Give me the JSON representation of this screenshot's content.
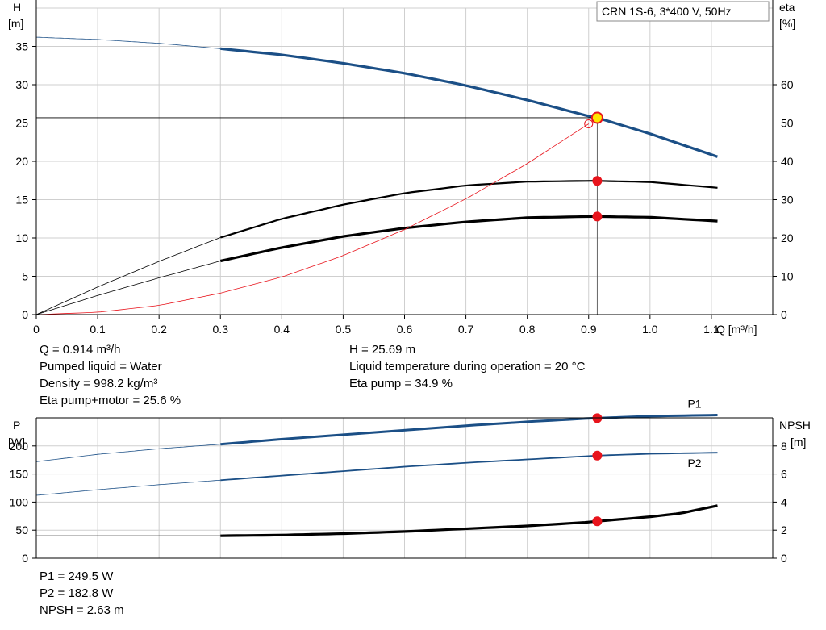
{
  "title_box": "CRN 1S-6, 3*400 V, 50Hz",
  "colors": {
    "blue": "#1b4f86",
    "black": "#000000",
    "red": "#e8141c",
    "grid": "#cfcfcf",
    "yellow": "#ffe600"
  },
  "top_chart": {
    "left_axis_label": [
      "H",
      "[m]"
    ],
    "right_axis_label": [
      "eta",
      "[%]"
    ],
    "x_axis_label": "Q [m³/h]",
    "x_ticks": [
      "0",
      "0.1",
      "0.2",
      "0.3",
      "0.4",
      "0.5",
      "0.6",
      "0.7",
      "0.8",
      "0.9",
      "1.0",
      "1.1"
    ],
    "left_ticks": [
      "0",
      "5",
      "10",
      "15",
      "20",
      "25",
      "30",
      "35"
    ],
    "right_ticks": [
      "0",
      "10",
      "20",
      "30",
      "40",
      "50",
      "60"
    ]
  },
  "bottom_chart": {
    "left_axis_label": [
      "P",
      "[W]"
    ],
    "right_axis_label": [
      "NPSH",
      "[m]"
    ],
    "left_ticks": [
      "0",
      "50",
      "100",
      "150",
      "200"
    ],
    "right_ticks": [
      "0",
      "2",
      "4",
      "6",
      "8"
    ],
    "series_labels": {
      "p1": "P1",
      "p2": "P2"
    }
  },
  "info_top_left": [
    "Q = 0.914 m³/h",
    "Pumped liquid = Water",
    "Density = 998.2 kg/m³",
    "Eta pump+motor = 25.6 %"
  ],
  "info_top_right": [
    "H = 25.69 m",
    "Liquid temperature during operation = 20 °C",
    "Eta pump = 34.9 %"
  ],
  "info_bottom": [
    "P1 = 249.5 W",
    "P2 = 182.8 W",
    "NPSH = 2.63 m"
  ],
  "chart_data": [
    {
      "type": "line",
      "title": "CRN 1S-6, 3*400 V, 50Hz",
      "xlabel": "Q [m³/h]",
      "ylabel": "H [m]",
      "y2label": "eta [%]",
      "xlim": [
        0,
        1.2
      ],
      "ylim": [
        0,
        40
      ],
      "y2lim": [
        0,
        80
      ],
      "grid": true,
      "operating_point": {
        "q": 0.914,
        "h": 25.69,
        "eta_pump": 34.9,
        "eta_pump_motor": 25.6
      },
      "series": [
        {
          "id": "head",
          "axis": "left",
          "color": "blue",
          "x": [
            0,
            0.1,
            0.2,
            0.3,
            0.4,
            0.5,
            0.6,
            0.7,
            0.8,
            0.9,
            0.914,
            1.0,
            1.11
          ],
          "y": [
            36.2,
            35.9,
            35.4,
            34.7,
            33.9,
            32.8,
            31.5,
            29.9,
            28.0,
            25.9,
            25.69,
            23.6,
            20.6
          ]
        },
        {
          "id": "eta_pump",
          "axis": "right",
          "color": "black",
          "x": [
            0,
            0.1,
            0.2,
            0.3,
            0.4,
            0.5,
            0.6,
            0.7,
            0.8,
            0.9,
            0.914,
            1.0,
            1.11
          ],
          "y": [
            0,
            7.2,
            13.9,
            20.1,
            25.0,
            28.7,
            31.7,
            33.7,
            34.7,
            34.9,
            34.9,
            34.6,
            33.1
          ]
        },
        {
          "id": "eta_pump_motor",
          "axis": "right",
          "color": "black",
          "x": [
            0,
            0.1,
            0.2,
            0.3,
            0.4,
            0.5,
            0.6,
            0.7,
            0.8,
            0.9,
            0.914,
            1.0,
            1.11
          ],
          "y": [
            0,
            5.0,
            9.6,
            14.0,
            17.5,
            20.4,
            22.6,
            24.2,
            25.3,
            25.6,
            25.6,
            25.4,
            24.4
          ]
        },
        {
          "id": "system_curve",
          "axis": "left",
          "color": "red",
          "x": [
            0,
            0.1,
            0.2,
            0.3,
            0.4,
            0.5,
            0.6,
            0.7,
            0.8,
            0.9
          ],
          "y": [
            0,
            0.3,
            1.2,
            2.8,
            4.9,
            7.7,
            11.1,
            15.1,
            19.7,
            24.9
          ]
        }
      ]
    },
    {
      "type": "line",
      "xlabel": "Q [m³/h]",
      "ylabel": "P [W]",
      "y2label": "NPSH [m]",
      "xlim": [
        0,
        1.2
      ],
      "ylim": [
        0,
        250
      ],
      "y2lim": [
        0,
        10
      ],
      "grid": true,
      "operating_point": {
        "q": 0.914,
        "p1": 249.5,
        "p2": 182.8,
        "npsh": 2.63
      },
      "series": [
        {
          "id": "p1",
          "name": "P1",
          "axis": "left",
          "color": "blue",
          "x": [
            0,
            0.1,
            0.2,
            0.3,
            0.4,
            0.5,
            0.6,
            0.7,
            0.8,
            0.9,
            0.914,
            1.0,
            1.11
          ],
          "y": [
            172,
            185,
            195,
            203,
            212,
            220,
            228,
            236,
            243,
            249,
            249.5,
            253,
            255
          ]
        },
        {
          "id": "p2",
          "name": "P2",
          "axis": "left",
          "color": "blue",
          "x": [
            0,
            0.1,
            0.2,
            0.3,
            0.4,
            0.5,
            0.6,
            0.7,
            0.8,
            0.9,
            0.914,
            1.0,
            1.11
          ],
          "y": [
            112,
            122,
            131,
            139,
            147,
            155,
            163,
            170,
            176,
            182,
            182.8,
            186,
            188
          ]
        },
        {
          "id": "npsh",
          "axis": "right",
          "color": "black",
          "x": [
            0,
            0.3,
            0.4,
            0.5,
            0.6,
            0.7,
            0.8,
            0.9,
            0.914,
            1.0,
            1.05,
            1.11
          ],
          "y": [
            1.6,
            1.6,
            1.65,
            1.75,
            1.9,
            2.1,
            2.3,
            2.57,
            2.63,
            2.95,
            3.2,
            3.75
          ]
        }
      ]
    }
  ]
}
